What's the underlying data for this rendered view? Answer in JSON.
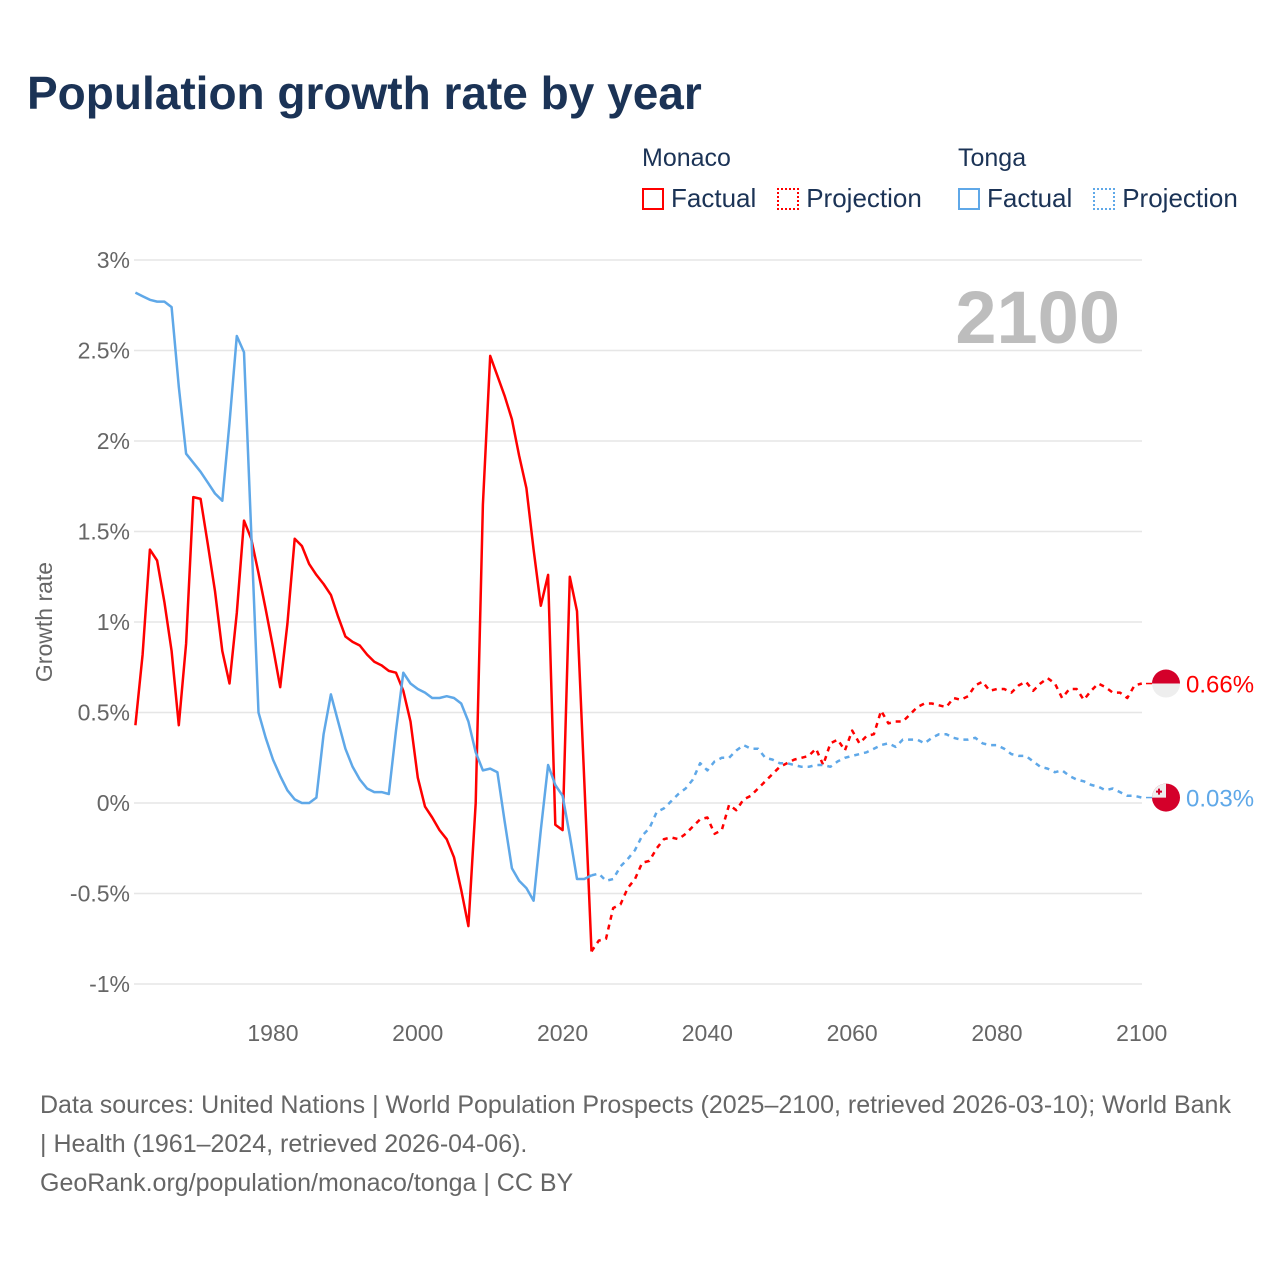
{
  "title": "Population growth rate by year",
  "legend": {
    "groups": [
      {
        "name": "Monaco",
        "factual": "Factual",
        "projection": "Projection",
        "color": "#ff0000"
      },
      {
        "name": "Tonga",
        "factual": "Factual",
        "projection": "Projection",
        "color": "#5fa8e8"
      }
    ]
  },
  "footer": {
    "line1": "Data sources: United Nations | World Population Prospects (2025–2100, retrieved 2026-03-10); World Bank | Health (1961–2024, retrieved 2026-04-06).",
    "line2": "GeoRank.org/population/monaco/tonga | CC BY"
  },
  "chart_data": {
    "type": "line",
    "title": "Population growth rate by year",
    "xlabel": "",
    "ylabel": "Growth rate",
    "year_label": "2100",
    "xlim": [
      1961,
      2100
    ],
    "ylim": [
      -1,
      3
    ],
    "x_ticks": [
      1980,
      2000,
      2020,
      2040,
      2060,
      2080,
      2100
    ],
    "y_ticks": [
      {
        "v": 3,
        "label": "3%"
      },
      {
        "v": 2.5,
        "label": "2.5%"
      },
      {
        "v": 2,
        "label": "2%"
      },
      {
        "v": 1.5,
        "label": "1.5%"
      },
      {
        "v": 1,
        "label": "1%"
      },
      {
        "v": 0.5,
        "label": "0.5%"
      },
      {
        "v": 0,
        "label": "0%"
      },
      {
        "v": -0.5,
        "label": "-0.5%"
      },
      {
        "v": -1,
        "label": "-1%"
      }
    ],
    "grid": true,
    "legend_position": "top-right",
    "series": [
      {
        "name": "Monaco",
        "kind": "Factual",
        "color": "#ff0000",
        "start_year": 1961,
        "values": [
          0.43,
          0.82,
          1.4,
          1.34,
          1.11,
          0.84,
          0.43,
          0.88,
          1.69,
          1.68,
          1.43,
          1.17,
          0.84,
          0.66,
          1.05,
          1.56,
          1.46,
          1.27,
          1.07,
          0.86,
          0.64,
          0.99,
          1.46,
          1.42,
          1.32,
          1.26,
          1.21,
          1.15,
          1.03,
          0.92,
          0.89,
          0.87,
          0.82,
          0.78,
          0.76,
          0.73,
          0.72,
          0.62,
          0.45,
          0.14,
          -0.02,
          -0.08,
          -0.15,
          -0.2,
          -0.3,
          -0.48,
          -0.68,
          0.0,
          1.65,
          2.47,
          2.36,
          2.25,
          2.12,
          1.92,
          1.74,
          1.4,
          1.09,
          1.26,
          -0.12,
          -0.15,
          1.25,
          1.06,
          0.12,
          -0.82
        ]
      },
      {
        "name": "Monaco",
        "kind": "Projection",
        "color": "#ff0000",
        "start_year": 2024,
        "values": [
          -0.82,
          -0.76,
          -0.75,
          -0.58,
          -0.56,
          -0.47,
          -0.42,
          -0.33,
          -0.32,
          -0.25,
          -0.2,
          -0.19,
          -0.2,
          -0.17,
          -0.13,
          -0.09,
          -0.08,
          -0.17,
          -0.15,
          -0.01,
          -0.04,
          0.02,
          0.04,
          0.08,
          0.12,
          0.16,
          0.2,
          0.22,
          0.24,
          0.25,
          0.26,
          0.3,
          0.21,
          0.33,
          0.35,
          0.29,
          0.4,
          0.33,
          0.37,
          0.38,
          0.51,
          0.44,
          0.45,
          0.45,
          0.49,
          0.53,
          0.55,
          0.55,
          0.54,
          0.53,
          0.58,
          0.57,
          0.59,
          0.65,
          0.67,
          0.62,
          0.63,
          0.63,
          0.61,
          0.65,
          0.67,
          0.62,
          0.66,
          0.69,
          0.66,
          0.58,
          0.63,
          0.63,
          0.57,
          0.62,
          0.66,
          0.64,
          0.61,
          0.61,
          0.58,
          0.65,
          0.66
        ]
      },
      {
        "name": "Tonga",
        "kind": "Factual",
        "color": "#5fa8e8",
        "start_year": 1961,
        "values": [
          2.82,
          2.8,
          2.78,
          2.77,
          2.77,
          2.74,
          2.3,
          1.93,
          1.88,
          1.83,
          1.77,
          1.71,
          1.67,
          2.1,
          2.58,
          2.49,
          1.5,
          0.5,
          0.36,
          0.24,
          0.15,
          0.07,
          0.02,
          0.0,
          0.0,
          0.03,
          0.38,
          0.6,
          0.45,
          0.3,
          0.2,
          0.13,
          0.08,
          0.06,
          0.06,
          0.05,
          0.4,
          0.72,
          0.66,
          0.63,
          0.61,
          0.58,
          0.58,
          0.59,
          0.58,
          0.55,
          0.45,
          0.28,
          0.18,
          0.19,
          0.17,
          -0.1,
          -0.36,
          -0.43,
          -0.47,
          -0.54,
          -0.15,
          0.21,
          0.1,
          0.04,
          -0.18,
          -0.42,
          -0.42,
          -0.4
        ]
      },
      {
        "name": "Tonga",
        "kind": "Projection",
        "color": "#5fa8e8",
        "start_year": 2024,
        "values": [
          -0.4,
          -0.39,
          -0.43,
          -0.42,
          -0.35,
          -0.31,
          -0.26,
          -0.18,
          -0.14,
          -0.05,
          -0.03,
          0.01,
          0.05,
          0.08,
          0.13,
          0.22,
          0.18,
          0.23,
          0.25,
          0.25,
          0.29,
          0.32,
          0.3,
          0.3,
          0.25,
          0.24,
          0.22,
          0.22,
          0.21,
          0.2,
          0.2,
          0.21,
          0.21,
          0.2,
          0.23,
          0.25,
          0.26,
          0.27,
          0.28,
          0.3,
          0.32,
          0.33,
          0.31,
          0.35,
          0.35,
          0.35,
          0.33,
          0.36,
          0.38,
          0.38,
          0.36,
          0.35,
          0.35,
          0.36,
          0.33,
          0.32,
          0.32,
          0.3,
          0.27,
          0.26,
          0.26,
          0.23,
          0.2,
          0.19,
          0.17,
          0.18,
          0.15,
          0.13,
          0.12,
          0.1,
          0.09,
          0.07,
          0.08,
          0.06,
          0.04,
          0.04,
          0.03
        ]
      }
    ],
    "end_labels": [
      {
        "country": "Monaco",
        "value": 0.66,
        "label": "0.66%",
        "color": "#ff0000"
      },
      {
        "country": "Tonga",
        "value": 0.03,
        "label": "0.03%",
        "color": "#5fa8e8"
      }
    ]
  }
}
